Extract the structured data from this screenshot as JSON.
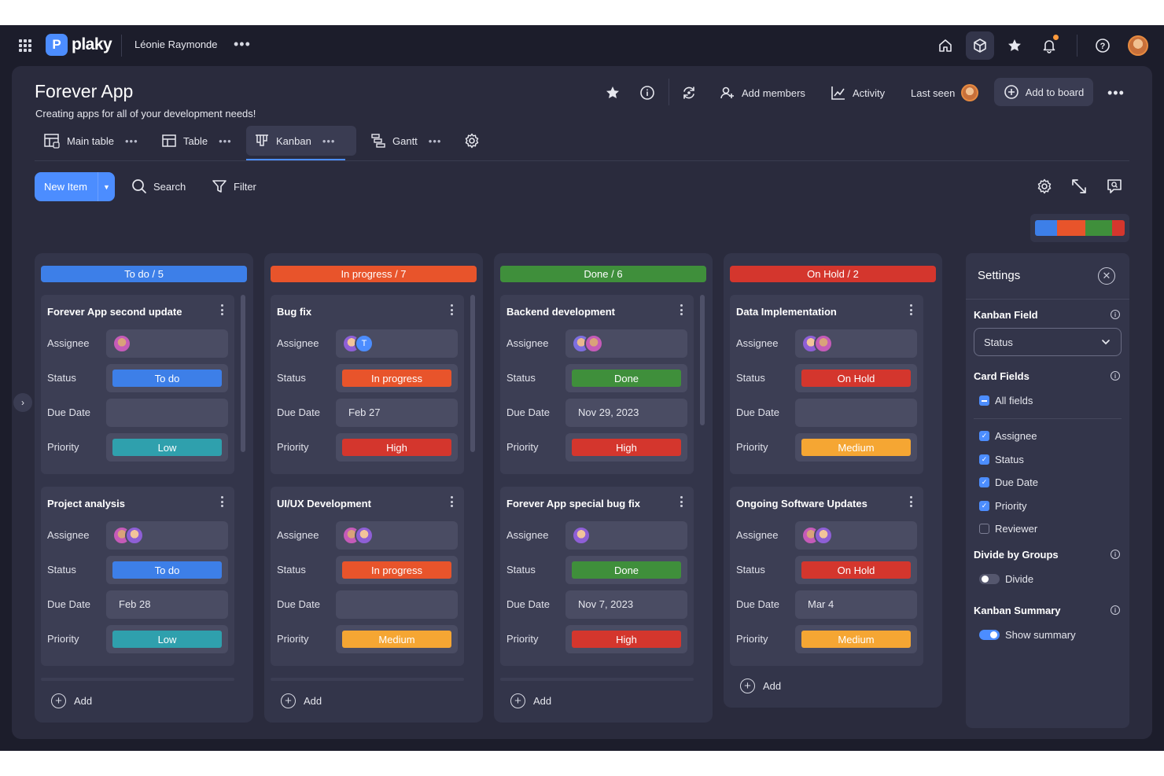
{
  "app": {
    "name": "plaky",
    "workspace": "Léonie Raymonde"
  },
  "board": {
    "title": "Forever App",
    "description": "Creating apps for all of your development needs!",
    "actions": {
      "add_members": "Add members",
      "activity": "Activity",
      "last_seen": "Last seen",
      "add_to_board": "Add to board"
    }
  },
  "views": [
    {
      "label": "Main table",
      "icon": "main-table-icon"
    },
    {
      "label": "Table",
      "icon": "table-icon"
    },
    {
      "label": "Kanban",
      "icon": "kanban-icon",
      "active": true
    },
    {
      "label": "Gantt",
      "icon": "gantt-icon"
    }
  ],
  "toolbar": {
    "new_item": "New Item",
    "search": "Search",
    "filter": "Filter"
  },
  "colors": {
    "accent": "#4c8dff",
    "todo": "#3d7fe8",
    "in_progress": "#e8542b",
    "done": "#3f8f3b",
    "on_hold": "#d4362d",
    "low": "#2fa0ad",
    "high": "#d4362d",
    "medium": "#f5a633"
  },
  "field_labels": {
    "assignee": "Assignee",
    "status": "Status",
    "due_date": "Due Date",
    "priority": "Priority"
  },
  "columns": [
    {
      "header": "To do / 5",
      "add_label": "Add",
      "cards": [
        {
          "title": "Forever App second update",
          "assignees": [
            "p2"
          ],
          "status": "To do",
          "due": "",
          "priority": "Low"
        },
        {
          "title": "Project analysis",
          "assignees": [
            "p2",
            "p1"
          ],
          "status": "To do",
          "due": "Feb 28",
          "priority": "Low"
        }
      ]
    },
    {
      "header": "In progress / 7",
      "add_label": "Add",
      "cards": [
        {
          "title": "Bug fix",
          "assignees": [
            "p1",
            "T"
          ],
          "status": "In progress",
          "due": "Feb 27",
          "priority": "High"
        },
        {
          "title": "UI/UX Development",
          "assignees": [
            "p2",
            "p1"
          ],
          "status": "In progress",
          "due": "",
          "priority": "Medium"
        }
      ]
    },
    {
      "header": "Done / 6",
      "add_label": "Add",
      "cards": [
        {
          "title": "Backend development",
          "assignees": [
            "p3",
            "p2"
          ],
          "status": "Done",
          "due": "Nov 29, 2023",
          "priority": "High"
        },
        {
          "title": "Forever App special bug fix",
          "assignees": [
            "p1"
          ],
          "status": "Done",
          "due": "Nov 7, 2023",
          "priority": "High"
        }
      ]
    },
    {
      "header": "On Hold / 2",
      "add_label": "Add",
      "cards": [
        {
          "title": "Data Implementation",
          "assignees": [
            "p1",
            "p2"
          ],
          "status": "On Hold",
          "due": "",
          "priority": "Medium"
        },
        {
          "title": "Ongoing Software Updates",
          "assignees": [
            "p2",
            "p1"
          ],
          "status": "On Hold",
          "due": "Mar 4",
          "priority": "Medium"
        }
      ]
    }
  ],
  "settings": {
    "title": "Settings",
    "kanban_field": {
      "label": "Kanban Field",
      "value": "Status"
    },
    "card_fields": {
      "label": "Card Fields",
      "all_fields": "All fields",
      "items": [
        {
          "label": "Assignee",
          "checked": true
        },
        {
          "label": "Status",
          "checked": true
        },
        {
          "label": "Due Date",
          "checked": true
        },
        {
          "label": "Priority",
          "checked": true
        },
        {
          "label": "Reviewer",
          "checked": false
        }
      ]
    },
    "divide_by_groups": {
      "label": "Divide by Groups",
      "toggle_label": "Divide",
      "on": false
    },
    "kanban_summary": {
      "label": "Kanban Summary",
      "toggle_label": "Show summary",
      "on": true
    }
  }
}
